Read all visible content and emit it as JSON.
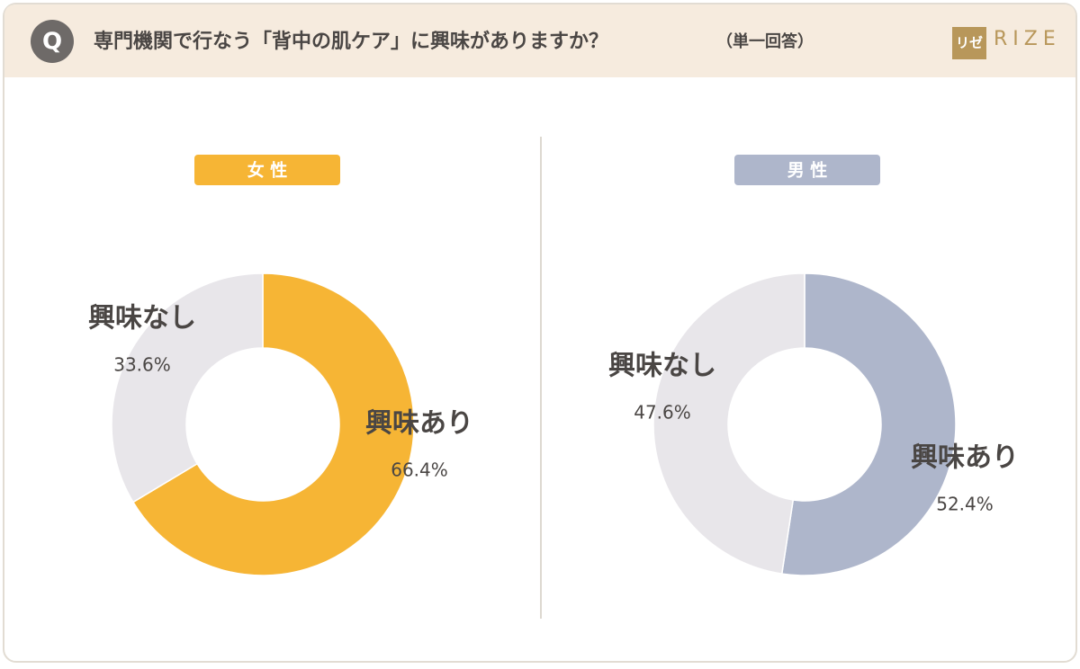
{
  "header": {
    "badge": "Q",
    "title": "専門機関で行なう「背中の肌ケア」に興味がありますか？",
    "note": "（単一回答）",
    "logo_mark": "リゼ",
    "logo_text": "RIZE"
  },
  "chart_data": [
    {
      "type": "pie",
      "donut": true,
      "title": "女 性",
      "title_color": "#f6b535",
      "categories": [
        "興味あり",
        "興味なし"
      ],
      "values": [
        66.4,
        33.6
      ],
      "value_labels": [
        "66.4%",
        "33.6%"
      ],
      "colors": [
        "#f6b535",
        "#e8e6ea"
      ]
    },
    {
      "type": "pie",
      "donut": true,
      "title": "男 性",
      "title_color": "#aeb6cb",
      "categories": [
        "興味あり",
        "興味なし"
      ],
      "values": [
        52.4,
        47.6
      ],
      "value_labels": [
        "52.4%",
        "47.6%"
      ],
      "colors": [
        "#aeb6cb",
        "#e8e6ea"
      ]
    }
  ]
}
